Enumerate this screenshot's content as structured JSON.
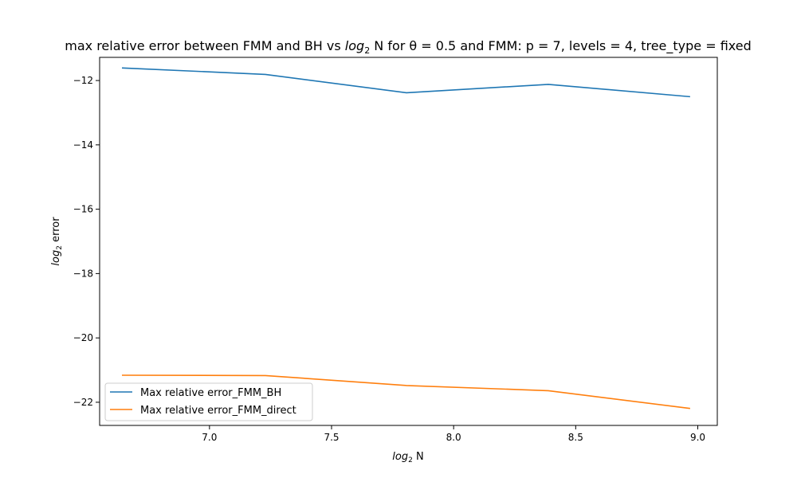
{
  "chart_data": {
    "type": "line",
    "title_pre": "max relative error between FMM and BH vs ",
    "title_log": "log",
    "title_sub": "2",
    "title_post": " N for θ = 0.5 and FMM: p = 7, levels = 4, tree_type = fixed",
    "xlabel_log": "log",
    "xlabel_sub": "2",
    "xlabel_post": " N",
    "ylabel_log": "log",
    "ylabel_sub": "2",
    "ylabel_post": " error",
    "xlim": [
      6.55,
      9.08
    ],
    "ylim": [
      -22.72,
      -11.28
    ],
    "xticks": [
      7.0,
      7.5,
      8.0,
      8.5,
      9.0
    ],
    "xtick_labels": [
      "7.0",
      "7.5",
      "8.0",
      "8.5",
      "9.0"
    ],
    "yticks": [
      -12,
      -14,
      -16,
      -18,
      -20,
      -22
    ],
    "ytick_labels": [
      "−12",
      "−14",
      "−16",
      "−18",
      "−20",
      "−22"
    ],
    "grid": false,
    "legend_position": "lower-left",
    "x": [
      6.644,
      7.229,
      7.807,
      8.388,
      8.966
    ],
    "series": [
      {
        "name": "Max relative error_FMM_BH",
        "color": "#1f77b4",
        "values": [
          -11.61,
          -11.81,
          -12.38,
          -12.12,
          -12.5
        ]
      },
      {
        "name": "Max relative error_FMM_direct",
        "color": "#ff7f0e",
        "values": [
          -21.16,
          -21.17,
          -21.48,
          -21.64,
          -22.19
        ]
      }
    ]
  }
}
